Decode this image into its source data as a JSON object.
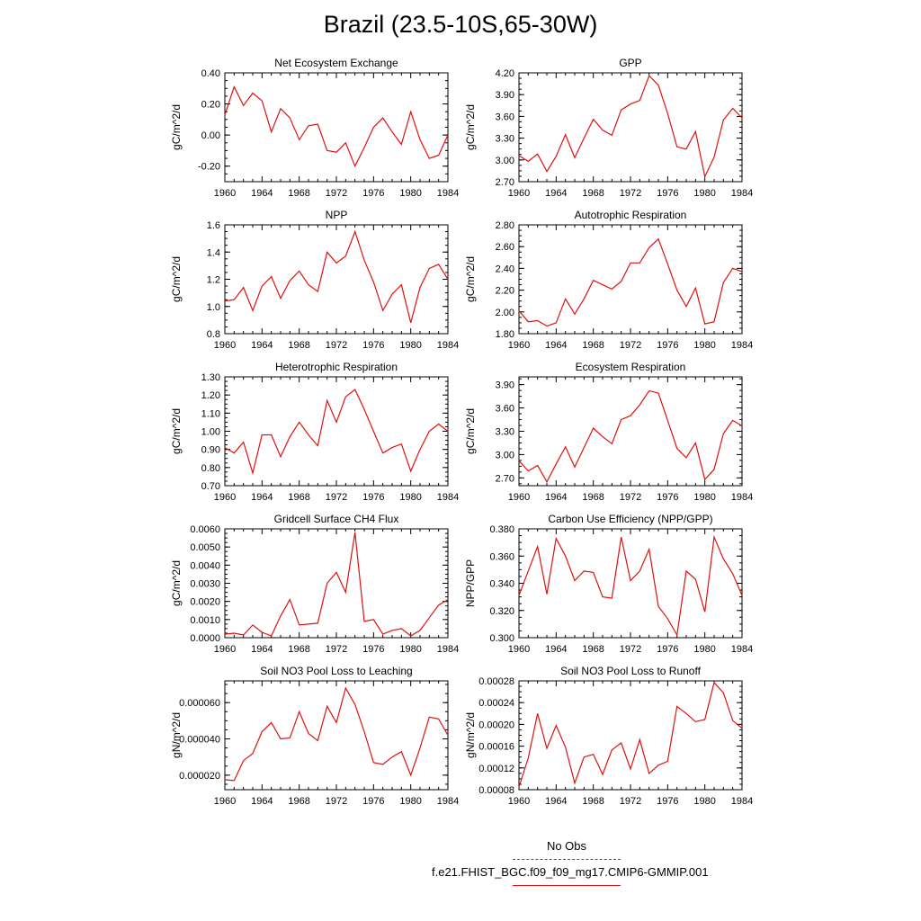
{
  "page": {
    "title": "Brazil (23.5-10S,65-30W)"
  },
  "legend": {
    "obs_label": "No Obs",
    "obs_color": "#3b3bd9",
    "model_label": "f.e21.FHIST_BGC.f09_f09_mg17.CMIP6-GMMIP.001",
    "model_color": "#e01010"
  },
  "chart_data": [
    {
      "type": "line",
      "title": "Net Ecosystem Exchange",
      "ylabel": "gC/m^2/d",
      "xlim": [
        1960,
        1984
      ],
      "ylim": [
        -0.3,
        0.4
      ],
      "yticks": [
        -0.2,
        0.0,
        0.2,
        0.4
      ],
      "ytick_labels": [
        "-0.20",
        "0.00",
        "0.20",
        "0.40"
      ],
      "xticks": [
        1960,
        1964,
        1968,
        1972,
        1976,
        1980,
        1984
      ],
      "x": [
        1960,
        1961,
        1962,
        1963,
        1964,
        1965,
        1966,
        1967,
        1968,
        1969,
        1970,
        1971,
        1972,
        1973,
        1974,
        1975,
        1976,
        1977,
        1978,
        1979,
        1980,
        1981,
        1982,
        1983,
        1984
      ],
      "series": [
        {
          "color": "#e01010",
          "values": [
            0.13,
            0.31,
            0.19,
            0.27,
            0.22,
            0.02,
            0.17,
            0.11,
            -0.03,
            0.06,
            0.07,
            -0.1,
            -0.11,
            -0.05,
            -0.2,
            -0.08,
            0.05,
            0.11,
            0.02,
            -0.06,
            0.15,
            -0.03,
            -0.15,
            -0.13,
            0.0
          ]
        }
      ]
    },
    {
      "type": "line",
      "title": "GPP",
      "ylabel": "gC/m^2/d",
      "xlim": [
        1960,
        1984
      ],
      "ylim": [
        2.7,
        4.2
      ],
      "yticks": [
        2.7,
        3.0,
        3.3,
        3.6,
        3.9,
        4.2
      ],
      "ytick_labels": [
        "2.70",
        "3.00",
        "3.30",
        "3.60",
        "3.90",
        "4.20"
      ],
      "xticks": [
        1960,
        1964,
        1968,
        1972,
        1976,
        1980,
        1984
      ],
      "x": [
        1960,
        1961,
        1962,
        1963,
        1964,
        1965,
        1966,
        1967,
        1968,
        1969,
        1970,
        1971,
        1972,
        1973,
        1974,
        1975,
        1976,
        1977,
        1978,
        1979,
        1980,
        1981,
        1982,
        1983,
        1984
      ],
      "series": [
        {
          "color": "#e01010",
          "values": [
            3.06,
            2.98,
            3.08,
            2.84,
            3.05,
            3.35,
            3.03,
            3.3,
            3.56,
            3.41,
            3.34,
            3.69,
            3.77,
            3.82,
            4.16,
            4.03,
            3.64,
            3.18,
            3.15,
            3.39,
            2.77,
            3.04,
            3.55,
            3.71,
            3.58
          ]
        }
      ]
    },
    {
      "type": "line",
      "title": "NPP",
      "ylabel": "gC/m^2/d",
      "xlim": [
        1960,
        1984
      ],
      "ylim": [
        0.8,
        1.6
      ],
      "yticks": [
        0.8,
        1.0,
        1.2,
        1.4,
        1.6
      ],
      "ytick_labels": [
        "0.8",
        "1.0",
        "1.2",
        "1.4",
        "1.6"
      ],
      "xticks": [
        1960,
        1964,
        1968,
        1972,
        1976,
        1980,
        1984
      ],
      "x": [
        1960,
        1961,
        1962,
        1963,
        1964,
        1965,
        1966,
        1967,
        1968,
        1969,
        1970,
        1971,
        1972,
        1973,
        1974,
        1975,
        1976,
        1977,
        1978,
        1979,
        1980,
        1981,
        1982,
        1983,
        1984
      ],
      "series": [
        {
          "color": "#e01010",
          "values": [
            1.04,
            1.05,
            1.14,
            0.97,
            1.15,
            1.22,
            1.06,
            1.19,
            1.26,
            1.16,
            1.11,
            1.4,
            1.32,
            1.37,
            1.55,
            1.34,
            1.18,
            0.97,
            1.09,
            1.16,
            0.88,
            1.14,
            1.28,
            1.31,
            1.2
          ]
        }
      ]
    },
    {
      "type": "line",
      "title": "Autotrophic Respiration",
      "ylabel": "gC/m^2/d",
      "xlim": [
        1960,
        1984
      ],
      "ylim": [
        1.8,
        2.8
      ],
      "yticks": [
        1.8,
        2.0,
        2.2,
        2.4,
        2.6,
        2.8
      ],
      "ytick_labels": [
        "1.80",
        "2.00",
        "2.20",
        "2.40",
        "2.60",
        "2.80"
      ],
      "xticks": [
        1960,
        1964,
        1968,
        1972,
        1976,
        1980,
        1984
      ],
      "x": [
        1960,
        1961,
        1962,
        1963,
        1964,
        1965,
        1966,
        1967,
        1968,
        1969,
        1970,
        1971,
        1972,
        1973,
        1974,
        1975,
        1976,
        1977,
        1978,
        1979,
        1980,
        1981,
        1982,
        1983,
        1984
      ],
      "series": [
        {
          "color": "#e01010",
          "values": [
            2.01,
            1.91,
            1.92,
            1.87,
            1.9,
            2.12,
            1.98,
            2.12,
            2.29,
            2.25,
            2.21,
            2.28,
            2.45,
            2.45,
            2.59,
            2.67,
            2.44,
            2.2,
            2.05,
            2.22,
            1.89,
            1.91,
            2.27,
            2.4,
            2.37
          ]
        }
      ]
    },
    {
      "type": "line",
      "title": "Heterotrophic Respiration",
      "ylabel": "gC/m^2/d",
      "xlim": [
        1960,
        1984
      ],
      "ylim": [
        0.7,
        1.3
      ],
      "yticks": [
        0.7,
        0.8,
        0.9,
        1.0,
        1.1,
        1.2,
        1.3
      ],
      "ytick_labels": [
        "0.70",
        "0.80",
        "0.90",
        "1.00",
        "1.10",
        "1.20",
        "1.30"
      ],
      "xticks": [
        1960,
        1964,
        1968,
        1972,
        1976,
        1980,
        1984
      ],
      "x": [
        1960,
        1961,
        1962,
        1963,
        1964,
        1965,
        1966,
        1967,
        1968,
        1969,
        1970,
        1971,
        1972,
        1973,
        1974,
        1975,
        1976,
        1977,
        1978,
        1979,
        1980,
        1981,
        1982,
        1983,
        1984
      ],
      "series": [
        {
          "color": "#e01010",
          "values": [
            0.91,
            0.88,
            0.94,
            0.77,
            0.98,
            0.98,
            0.86,
            0.97,
            1.05,
            0.98,
            0.92,
            1.17,
            1.05,
            1.19,
            1.23,
            1.12,
            1.0,
            0.88,
            0.91,
            0.93,
            0.78,
            0.9,
            1.0,
            1.04,
            1.0
          ]
        }
      ]
    },
    {
      "type": "line",
      "title": "Ecosystem Respiration",
      "ylabel": "gC/m^2/d",
      "xlim": [
        1960,
        1984
      ],
      "ylim": [
        2.6,
        4.0
      ],
      "yticks": [
        2.7,
        3.0,
        3.3,
        3.6,
        3.9
      ],
      "ytick_labels": [
        "2.70",
        "3.00",
        "3.30",
        "3.60",
        "3.90"
      ],
      "xticks": [
        1960,
        1964,
        1968,
        1972,
        1976,
        1980,
        1984
      ],
      "x": [
        1960,
        1961,
        1962,
        1963,
        1964,
        1965,
        1966,
        1967,
        1968,
        1969,
        1970,
        1971,
        1972,
        1973,
        1974,
        1975,
        1976,
        1977,
        1978,
        1979,
        1980,
        1981,
        1982,
        1983,
        1984
      ],
      "series": [
        {
          "color": "#e01010",
          "values": [
            2.92,
            2.79,
            2.86,
            2.65,
            2.88,
            3.1,
            2.84,
            3.09,
            3.34,
            3.23,
            3.14,
            3.45,
            3.5,
            3.64,
            3.82,
            3.79,
            3.44,
            3.08,
            2.96,
            3.15,
            2.68,
            2.81,
            3.27,
            3.44,
            3.37
          ]
        }
      ]
    },
    {
      "type": "line",
      "title": "Gridcell Surface CH4 Flux",
      "ylabel": "gC/m^2/d",
      "xlim": [
        1960,
        1984
      ],
      "ylim": [
        0.0,
        0.006
      ],
      "yticks": [
        0.0,
        0.001,
        0.002,
        0.003,
        0.004,
        0.005,
        0.006
      ],
      "ytick_labels": [
        "0.0000",
        "0.0010",
        "0.0020",
        "0.0030",
        "0.0040",
        "0.0050",
        "0.0060"
      ],
      "xticks": [
        1960,
        1964,
        1968,
        1972,
        1976,
        1980,
        1984
      ],
      "x": [
        1960,
        1961,
        1962,
        1963,
        1964,
        1965,
        1966,
        1967,
        1968,
        1969,
        1970,
        1971,
        1972,
        1973,
        1974,
        1975,
        1976,
        1977,
        1978,
        1979,
        1980,
        1981,
        1982,
        1983,
        1984
      ],
      "series": [
        {
          "color": "#e01010",
          "values": [
            0.0002,
            0.00025,
            0.00015,
            0.0007,
            0.0003,
            0.0001,
            0.0012,
            0.0021,
            0.0007,
            0.00075,
            0.0008,
            0.003,
            0.0036,
            0.0025,
            0.0058,
            0.0009,
            0.001,
            0.0002,
            0.0004,
            0.0005,
            0.0001,
            0.0004,
            0.0011,
            0.0018,
            0.0021
          ]
        }
      ]
    },
    {
      "type": "line",
      "title": "Carbon Use Efficiency (NPP/GPP)",
      "ylabel": "NPP/GPP",
      "xlim": [
        1960,
        1984
      ],
      "ylim": [
        0.3,
        0.38
      ],
      "yticks": [
        0.3,
        0.32,
        0.34,
        0.36,
        0.38
      ],
      "ytick_labels": [
        "0.300",
        "0.320",
        "0.340",
        "0.360",
        "0.380"
      ],
      "xticks": [
        1960,
        1964,
        1968,
        1972,
        1976,
        1980,
        1984
      ],
      "x": [
        1960,
        1961,
        1962,
        1963,
        1964,
        1965,
        1966,
        1967,
        1968,
        1969,
        1970,
        1971,
        1972,
        1973,
        1974,
        1975,
        1976,
        1977,
        1978,
        1979,
        1980,
        1981,
        1982,
        1983,
        1984
      ],
      "series": [
        {
          "color": "#e01010",
          "values": [
            0.331,
            0.349,
            0.367,
            0.332,
            0.373,
            0.36,
            0.342,
            0.349,
            0.348,
            0.33,
            0.329,
            0.374,
            0.342,
            0.349,
            0.365,
            0.323,
            0.314,
            0.302,
            0.349,
            0.343,
            0.319,
            0.374,
            0.358,
            0.347,
            0.331
          ]
        }
      ]
    },
    {
      "type": "line",
      "title": "Soil NO3 Pool Loss to Leaching",
      "ylabel": "gN/m^2/d",
      "xlim": [
        1960,
        1984
      ],
      "ylim": [
        1.2e-05,
        7.2e-05
      ],
      "yticks": [
        2e-05,
        4e-05,
        6e-05
      ],
      "ytick_labels": [
        "0.000020",
        "0.000040",
        "0.000060"
      ],
      "xticks": [
        1960,
        1964,
        1968,
        1972,
        1976,
        1980,
        1984
      ],
      "x": [
        1960,
        1961,
        1962,
        1963,
        1964,
        1965,
        1966,
        1967,
        1968,
        1969,
        1970,
        1971,
        1972,
        1973,
        1974,
        1975,
        1976,
        1977,
        1978,
        1979,
        1980,
        1981,
        1982,
        1983,
        1984
      ],
      "series": [
        {
          "color": "#e01010",
          "values": [
            1.75e-05,
            1.7e-05,
            2.8e-05,
            3.2e-05,
            4.4e-05,
            4.9e-05,
            4e-05,
            4.05e-05,
            5.5e-05,
            4.3e-05,
            3.9e-05,
            5.8e-05,
            4.9e-05,
            6.8e-05,
            5.9e-05,
            4.4e-05,
            2.7e-05,
            2.6e-05,
            3e-05,
            3.3e-05,
            2e-05,
            3.5e-05,
            5.2e-05,
            5.1e-05,
            4.2e-05
          ]
        }
      ]
    },
    {
      "type": "line",
      "title": "Soil NO3 Pool Loss to Runoff",
      "ylabel": "gN/m^2/d",
      "xlim": [
        1960,
        1984
      ],
      "ylim": [
        8e-05,
        0.00028
      ],
      "yticks": [
        8e-05,
        0.00012,
        0.00016,
        0.0002,
        0.00024,
        0.00028
      ],
      "ytick_labels": [
        "0.00008",
        "0.00012",
        "0.00016",
        "0.00020",
        "0.00024",
        "0.00028"
      ],
      "xticks": [
        1960,
        1964,
        1968,
        1972,
        1976,
        1980,
        1984
      ],
      "x": [
        1960,
        1961,
        1962,
        1963,
        1964,
        1965,
        1966,
        1967,
        1968,
        1969,
        1970,
        1971,
        1972,
        1973,
        1974,
        1975,
        1976,
        1977,
        1978,
        1979,
        1980,
        1981,
        1982,
        1983,
        1984
      ],
      "series": [
        {
          "color": "#e01010",
          "values": [
            8.5e-05,
            0.000138,
            0.00022,
            0.000156,
            0.000198,
            0.000158,
            9.2e-05,
            0.00014,
            0.000145,
            0.000108,
            0.000153,
            0.000166,
            0.000118,
            0.000172,
            0.00011,
            0.000125,
            0.000132,
            0.000233,
            0.00022,
            0.000205,
            0.000209,
            0.000277,
            0.000258,
            0.000207,
            0.000193
          ]
        }
      ]
    }
  ]
}
